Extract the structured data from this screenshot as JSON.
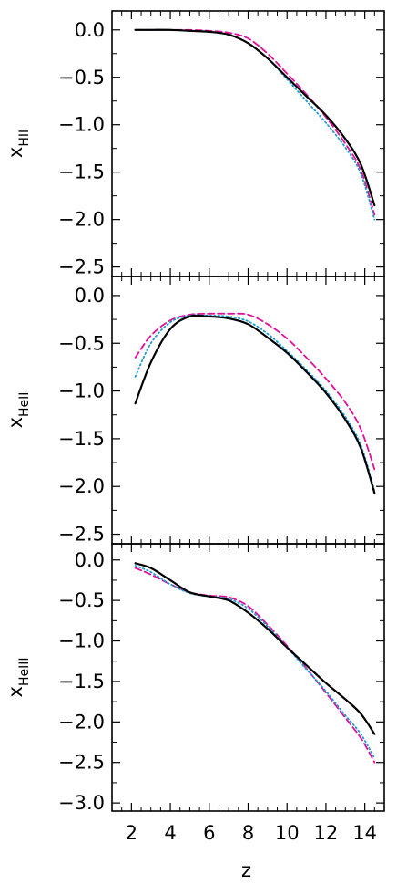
{
  "chart_data": [
    {
      "type": "line",
      "panel": "top",
      "ylabel": "x",
      "ylabel_sub": "HII",
      "xlim": [
        1,
        15
      ],
      "ylim": [
        -2.6,
        0.2
      ],
      "yticks": [
        0.0,
        -0.5,
        -1.0,
        -1.5,
        -2.0,
        -2.5
      ],
      "ytick_labels": [
        "0.0",
        "−0.5",
        "−1.0",
        "−1.5",
        "−2.0",
        "−2.5"
      ],
      "series": [
        {
          "style": "solid",
          "color": "#000000",
          "x": [
            2.2,
            3,
            4,
            5,
            6,
            7,
            8,
            9,
            10,
            11,
            12,
            13,
            13.8,
            14.5
          ],
          "y": [
            0.0,
            0.0,
            0.0,
            -0.01,
            -0.02,
            -0.05,
            -0.14,
            -0.3,
            -0.5,
            -0.7,
            -0.9,
            -1.15,
            -1.42,
            -1.85
          ]
        },
        {
          "style": "dotted",
          "color": "#1f9bd8",
          "x": [
            2.2,
            3,
            4,
            5,
            6,
            7,
            8,
            9,
            10,
            11,
            12,
            13,
            13.8,
            14.5
          ],
          "y": [
            0.0,
            0.0,
            0.0,
            -0.01,
            -0.02,
            -0.05,
            -0.14,
            -0.3,
            -0.52,
            -0.75,
            -0.98,
            -1.24,
            -1.52,
            -2.0
          ]
        },
        {
          "style": "dashed",
          "color": "#e0109a",
          "x": [
            2.2,
            3,
            4,
            5,
            6,
            7,
            8,
            9,
            10,
            11,
            12,
            13,
            13.8,
            14.5
          ],
          "y": [
            0.0,
            0.0,
            0.0,
            0.0,
            -0.01,
            -0.03,
            -0.09,
            -0.25,
            -0.46,
            -0.68,
            -0.92,
            -1.2,
            -1.48,
            -1.95
          ]
        }
      ]
    },
    {
      "type": "line",
      "panel": "middle",
      "ylabel": "x",
      "ylabel_sub": "HeII",
      "xlim": [
        1,
        15
      ],
      "ylim": [
        -2.6,
        0.2
      ],
      "yticks": [
        0.0,
        -0.5,
        -1.0,
        -1.5,
        -2.0,
        -2.5
      ],
      "ytick_labels": [
        "0.0",
        "−0.5",
        "−1.0",
        "−1.5",
        "−2.0",
        "−2.5"
      ],
      "series": [
        {
          "style": "solid",
          "color": "#000000",
          "x": [
            2.2,
            3,
            4,
            5,
            6,
            7,
            8,
            9,
            10,
            11,
            12,
            13,
            13.8,
            14.5
          ],
          "y": [
            -1.13,
            -0.7,
            -0.35,
            -0.22,
            -0.22,
            -0.24,
            -0.3,
            -0.44,
            -0.6,
            -0.8,
            -1.02,
            -1.3,
            -1.6,
            -2.07
          ]
        },
        {
          "style": "dotted",
          "color": "#1f9bd8",
          "x": [
            2.2,
            3,
            4,
            5,
            6,
            7,
            8,
            9,
            10,
            11,
            12,
            13,
            13.8,
            14.5
          ],
          "y": [
            -0.85,
            -0.5,
            -0.28,
            -0.21,
            -0.21,
            -0.22,
            -0.27,
            -0.4,
            -0.58,
            -0.78,
            -1.0,
            -1.27,
            -1.57,
            -2.05
          ]
        },
        {
          "style": "dashed",
          "color": "#e0109a",
          "x": [
            2.2,
            3,
            4,
            5,
            6,
            7,
            8,
            9,
            10,
            11,
            12,
            13,
            13.8,
            14.5
          ],
          "y": [
            -0.65,
            -0.42,
            -0.26,
            -0.2,
            -0.19,
            -0.19,
            -0.2,
            -0.3,
            -0.45,
            -0.65,
            -0.87,
            -1.12,
            -1.4,
            -1.82
          ]
        }
      ]
    },
    {
      "type": "line",
      "panel": "bottom",
      "ylabel": "x",
      "ylabel_sub": "HeIII",
      "xlabel": "z",
      "xlim": [
        1,
        15
      ],
      "ylim": [
        -3.1,
        0.2
      ],
      "xticks": [
        2,
        4,
        6,
        8,
        10,
        12,
        14
      ],
      "xtick_labels": [
        "2",
        "4",
        "6",
        "8",
        "10",
        "12",
        "14"
      ],
      "yticks": [
        0.0,
        -0.5,
        -1.0,
        -1.5,
        -2.0,
        -2.5,
        -3.0
      ],
      "ytick_labels": [
        "0.0",
        "−0.5",
        "−1.0",
        "−1.5",
        "−2.0",
        "−2.5",
        "−3.0"
      ],
      "series": [
        {
          "style": "solid",
          "color": "#000000",
          "x": [
            2.2,
            3,
            4,
            5,
            6,
            7,
            8,
            9,
            10,
            11,
            12,
            13,
            13.8,
            14.5
          ],
          "y": [
            -0.04,
            -0.1,
            -0.25,
            -0.4,
            -0.45,
            -0.5,
            -0.65,
            -0.85,
            -1.08,
            -1.3,
            -1.52,
            -1.72,
            -1.9,
            -2.15
          ]
        },
        {
          "style": "dotted",
          "color": "#1f9bd8",
          "x": [
            2.2,
            3,
            4,
            5,
            6,
            7,
            8,
            9,
            10,
            11,
            12,
            13,
            13.8,
            14.5
          ],
          "y": [
            -0.07,
            -0.15,
            -0.3,
            -0.41,
            -0.45,
            -0.48,
            -0.6,
            -0.82,
            -1.08,
            -1.35,
            -1.62,
            -1.92,
            -2.15,
            -2.45
          ]
        },
        {
          "style": "dashed",
          "color": "#e0109a",
          "x": [
            2.2,
            3,
            4,
            5,
            6,
            7,
            8,
            9,
            10,
            11,
            12,
            13,
            13.8,
            14.5
          ],
          "y": [
            -0.1,
            -0.18,
            -0.3,
            -0.4,
            -0.44,
            -0.46,
            -0.57,
            -0.8,
            -1.06,
            -1.34,
            -1.64,
            -1.95,
            -2.2,
            -2.5
          ]
        }
      ]
    }
  ]
}
